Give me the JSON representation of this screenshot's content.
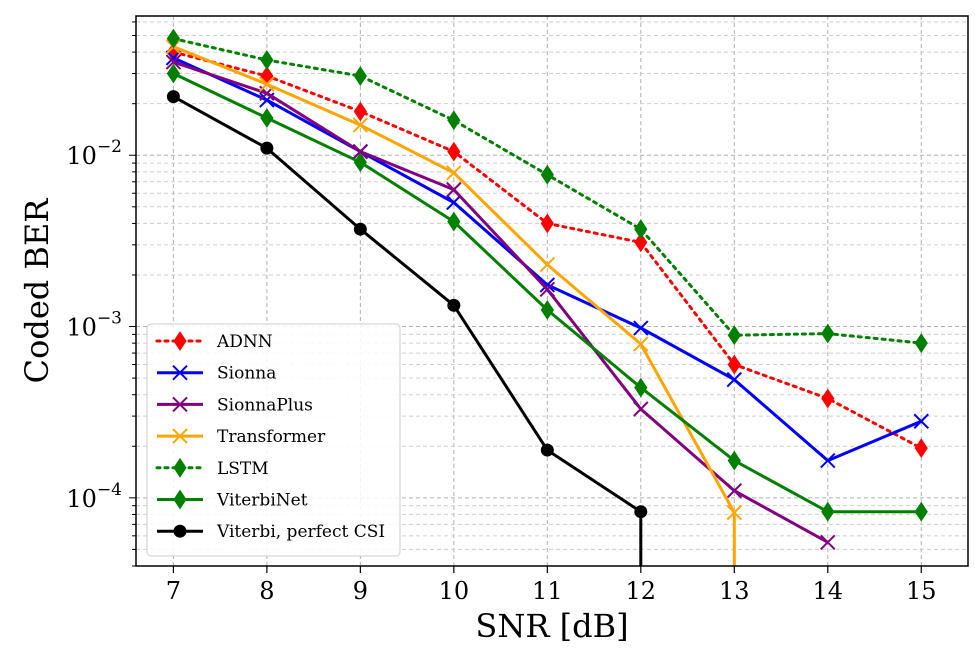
{
  "chart_data": {
    "type": "line",
    "title": "",
    "xlabel": "SNR [dB]",
    "ylabel": "Coded BER",
    "yscale": "log",
    "grid": true,
    "legend_position": "bottom-left",
    "xlim": [
      6.6,
      15.5
    ],
    "ylim": [
      4e-05,
      0.065
    ],
    "x_ticks": [
      7,
      8,
      9,
      10,
      11,
      12,
      13,
      14,
      15
    ],
    "x_tick_labels": [
      "7",
      "8",
      "9",
      "10",
      "11",
      "12",
      "13",
      "14",
      "15"
    ],
    "y_ticks": [
      {
        "value": 0.01,
        "base": "10",
        "exp": "−2"
      },
      {
        "value": 0.001,
        "base": "10",
        "exp": "−3"
      },
      {
        "value": 0.0001,
        "base": "10",
        "exp": "−4"
      }
    ],
    "x": [
      7,
      8,
      9,
      10,
      11,
      12,
      13,
      14,
      15
    ],
    "series": [
      {
        "name": "ADNN",
        "color": "#ff0000",
        "dash": "dotted",
        "marker": "diamond",
        "values": [
          0.04,
          0.029,
          0.018,
          0.0105,
          0.004,
          0.0031,
          0.0006,
          0.00038,
          0.000195
        ]
      },
      {
        "name": "Sionna",
        "color": "#0000ff",
        "dash": "solid",
        "marker": "x",
        "values": [
          0.037,
          0.021,
          0.0105,
          0.0053,
          0.00175,
          0.00098,
          0.00049,
          0.000165,
          0.00028
        ]
      },
      {
        "name": "SionnaPlus",
        "color": "#800080",
        "dash": "solid",
        "marker": "x",
        "values": [
          0.035,
          0.023,
          0.0105,
          0.0063,
          0.00165,
          0.00033,
          0.00011,
          5.5e-05,
          null
        ]
      },
      {
        "name": "Transformer",
        "color": "#ffa500",
        "dash": "solid",
        "marker": "x",
        "values": [
          0.043,
          0.026,
          0.015,
          0.0079,
          0.0023,
          0.00079,
          8.2e-05,
          null,
          null
        ],
        "drop_after_last": true
      },
      {
        "name": "LSTM",
        "color": "#008000",
        "dash": "dotted",
        "marker": "diamond",
        "values": [
          0.048,
          0.036,
          0.029,
          0.016,
          0.0077,
          0.0037,
          0.00089,
          0.00091,
          0.0008
        ]
      },
      {
        "name": "ViterbiNet",
        "color": "#008000",
        "dash": "solid",
        "marker": "diamond",
        "values": [
          0.03,
          0.0165,
          0.0091,
          0.0041,
          0.00125,
          0.00044,
          0.000165,
          8.3e-05,
          8.3e-05
        ]
      },
      {
        "name": "Viterbi, perfect CSI",
        "color": "#000000",
        "dash": "solid",
        "marker": "circle",
        "values": [
          0.022,
          0.011,
          0.0037,
          0.00133,
          0.00019,
          8.3e-05,
          null,
          null,
          null
        ],
        "drop_after_last": true
      }
    ]
  }
}
